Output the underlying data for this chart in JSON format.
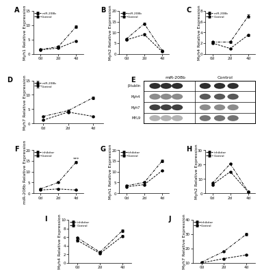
{
  "panel_A": {
    "label": "A",
    "ylabel": "Myh1 Relative Expression",
    "xlabels": [
      "0d",
      "2d",
      "4d"
    ],
    "xvals": [
      0,
      1,
      2
    ],
    "line1_label": "miR-208b",
    "line1_vals": [
      1.5,
      2.5,
      9.5
    ],
    "line1_err": [
      0.1,
      0.2,
      0.5
    ],
    "line2_label": "Control",
    "line2_vals": [
      1.4,
      2.0,
      4.5
    ],
    "line2_err": [
      0.1,
      0.15,
      0.3
    ],
    "ylim": [
      0,
      15
    ],
    "yticks": [
      0,
      5,
      10,
      15
    ]
  },
  "panel_B": {
    "label": "B",
    "ylabel": "Myh2 Relative Expression",
    "xlabels": [
      "0d",
      "2d",
      "4d"
    ],
    "xvals": [
      0,
      1,
      2
    ],
    "line1_label": "miR-208b",
    "line1_vals": [
      7.0,
      14.0,
      1.5
    ],
    "line1_err": [
      0.3,
      0.5,
      0.1
    ],
    "line2_label": "Control",
    "line2_vals": [
      6.5,
      9.0,
      1.0
    ],
    "line2_err": [
      0.3,
      0.4,
      0.1
    ],
    "ylim": [
      0,
      20
    ],
    "yticks": [
      0,
      5,
      10,
      15,
      20
    ]
  },
  "panel_C": {
    "label": "C",
    "ylabel": "Myh4 Relative Expression",
    "xlabels": [
      "0d",
      "2d",
      "4d"
    ],
    "xvals": [
      0,
      1,
      2
    ],
    "line1_label": "miR-208b",
    "line1_vals": [
      2.2,
      2.2,
      7.0
    ],
    "line1_err": [
      0.2,
      0.15,
      0.3
    ],
    "line2_label": "Control",
    "line2_vals": [
      2.0,
      1.0,
      3.5
    ],
    "line2_err": [
      0.15,
      0.1,
      0.2
    ],
    "ylim": [
      0,
      8
    ],
    "yticks": [
      0,
      2,
      4,
      6,
      8
    ]
  },
  "panel_D": {
    "label": "D",
    "ylabel": "Myh7 Relative Expression",
    "xlabels": [
      "0d",
      "2d",
      "4d"
    ],
    "xvals": [
      0,
      1,
      2
    ],
    "line1_label": "miR-208b",
    "line1_vals": [
      2.5,
      4.5,
      9.0
    ],
    "line1_err": [
      0.2,
      0.3,
      0.5
    ],
    "line2_label": "Control",
    "line2_vals": [
      1.2,
      4.0,
      2.5
    ],
    "line2_err": [
      0.1,
      0.3,
      0.2
    ],
    "ylim": [
      0,
      15
    ],
    "yticks": [
      0,
      5,
      10,
      15
    ]
  },
  "panel_F": {
    "label": "F",
    "ylabel": "miR-208b Relative Expression",
    "xlabels": [
      "0d",
      "2d",
      "4d"
    ],
    "xvals": [
      0,
      1,
      2
    ],
    "line1_label": "inhibitor",
    "line1_vals": [
      2.0,
      5.0,
      14.5
    ],
    "line1_err": [
      0.15,
      0.3,
      0.4
    ],
    "line2_label": "Control",
    "line2_vals": [
      1.5,
      2.0,
      1.5
    ],
    "line2_err": [
      0.1,
      0.15,
      0.1
    ],
    "ylim": [
      0,
      20
    ],
    "yticks": [
      0,
      5,
      10,
      15,
      20
    ],
    "sig_text": "***"
  },
  "panel_G": {
    "label": "G",
    "ylabel": "Myh1 Relative Expression",
    "xlabels": [
      "0d",
      "2d",
      "4d"
    ],
    "xvals": [
      0,
      1,
      2
    ],
    "line1_label": "inhibitor",
    "line1_vals": [
      3.5,
      5.0,
      15.0
    ],
    "line1_err": [
      0.2,
      0.3,
      0.5
    ],
    "line2_label": "Control",
    "line2_vals": [
      3.0,
      4.0,
      10.5
    ],
    "line2_err": [
      0.2,
      0.3,
      0.4
    ],
    "ylim": [
      0,
      20
    ],
    "yticks": [
      0,
      5,
      10,
      15,
      20
    ]
  },
  "panel_H": {
    "label": "H",
    "ylabel": "Myh2 Relative Expression",
    "xlabels": [
      "0d",
      "2d",
      "4d"
    ],
    "xvals": [
      0,
      1,
      2
    ],
    "line1_label": "inhibitor",
    "line1_vals": [
      7.0,
      20.5,
      1.0
    ],
    "line1_err": [
      0.3,
      0.5,
      0.1
    ],
    "line2_label": "Control",
    "line2_vals": [
      6.0,
      15.0,
      1.0
    ],
    "line2_err": [
      0.3,
      0.5,
      0.1
    ],
    "ylim": [
      0,
      30
    ],
    "yticks": [
      0,
      10,
      20,
      30
    ]
  },
  "panel_I": {
    "label": "I",
    "ylabel": "Myh4 Relative Expression",
    "xlabels": [
      "0d",
      "2d",
      "4d"
    ],
    "xvals": [
      0,
      1,
      2
    ],
    "line1_label": "inhibitor",
    "line1_vals": [
      5.8,
      2.5,
      7.5
    ],
    "line1_err": [
      0.3,
      0.2,
      0.3
    ],
    "line2_label": "Control",
    "line2_vals": [
      5.2,
      2.2,
      6.2
    ],
    "line2_err": [
      0.25,
      0.2,
      0.25
    ],
    "ylim": [
      0,
      10
    ],
    "yticks": [
      0,
      2,
      4,
      6,
      8,
      10
    ]
  },
  "panel_J": {
    "label": "J",
    "ylabel": "Myh7 Relative Expression",
    "xlabels": [
      "0d",
      "2d",
      "4d"
    ],
    "xvals": [
      0,
      1,
      2
    ],
    "line1_label": "inhibitor",
    "line1_vals": [
      10.5,
      18.0,
      30.0
    ],
    "line1_err": [
      0.4,
      0.5,
      0.8
    ],
    "line2_label": "Control",
    "line2_vals": [
      10.0,
      13.0,
      15.5
    ],
    "line2_err": [
      0.4,
      0.5,
      0.5
    ],
    "ylim": [
      10,
      40
    ],
    "yticks": [
      10,
      20,
      30,
      40
    ]
  },
  "western_blot_labels": [
    "β-tublin",
    "Myh4",
    "Myh7",
    "MYL9"
  ],
  "western_title_mir": "miR-208b",
  "western_title_ctrl": "Control",
  "bg_color": "#ffffff",
  "fontsize_label": 4.5,
  "fontsize_tick": 4.0,
  "fontsize_panel": 7
}
